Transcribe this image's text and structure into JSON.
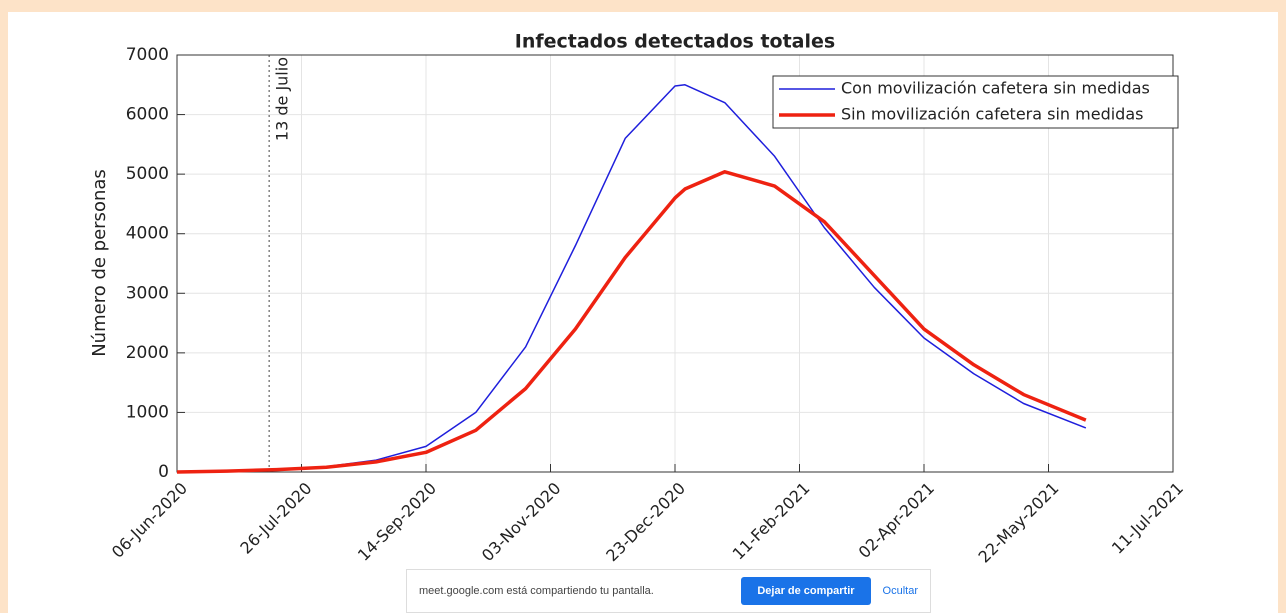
{
  "chart_data": {
    "type": "line",
    "title": "Infectados detectados totales",
    "ylabel": "Número de personas",
    "x": [
      "2020-06-06",
      "2020-06-26",
      "2020-07-16",
      "2020-08-05",
      "2020-08-25",
      "2020-09-14",
      "2020-10-04",
      "2020-10-24",
      "2020-11-13",
      "2020-12-03",
      "2020-12-23",
      "2020-12-27",
      "2021-01-12",
      "2021-02-01",
      "2021-02-21",
      "2021-03-13",
      "2021-04-02",
      "2021-04-22",
      "2021-05-12",
      "2021-06-06"
    ],
    "series": [
      {
        "name": "Con movilización cafetera sin medidas",
        "color": "#1f1fdc",
        "width": 1.5,
        "values": [
          0,
          15,
          40,
          90,
          200,
          430,
          1000,
          2100,
          3800,
          5600,
          6480,
          6500,
          6200,
          5300,
          4100,
          3100,
          2250,
          1650,
          1150,
          740
        ]
      },
      {
        "name": "Sin movilización cafetera sin medidas",
        "color": "#ee2211",
        "width": 3.5,
        "values": [
          0,
          15,
          40,
          80,
          170,
          330,
          700,
          1400,
          2400,
          3600,
          4600,
          4750,
          5040,
          4800,
          4200,
          3300,
          2400,
          1800,
          1300,
          870
        ]
      }
    ],
    "xlim": [
      "2020-06-06",
      "2021-07-11"
    ],
    "xticks": [
      {
        "value": "2020-06-06",
        "label": "06-Jun-2020"
      },
      {
        "value": "2020-07-26",
        "label": "26-Jul-2020"
      },
      {
        "value": "2020-09-14",
        "label": "14-Sep-2020"
      },
      {
        "value": "2020-11-03",
        "label": "03-Nov-2020"
      },
      {
        "value": "2020-12-23",
        "label": "23-Dec-2020"
      },
      {
        "value": "2021-02-11",
        "label": "11-Feb-2021"
      },
      {
        "value": "2021-04-02",
        "label": "02-Apr-2021"
      },
      {
        "value": "2021-05-22",
        "label": "22-May-2021"
      },
      {
        "value": "2021-07-11",
        "label": "11-Jul-2021"
      }
    ],
    "ylim": [
      0,
      7000
    ],
    "yticks": [
      0,
      1000,
      2000,
      3000,
      4000,
      5000,
      6000,
      7000
    ],
    "grid": true,
    "legend": "northeast",
    "annotation": {
      "text": "13 de Julio",
      "x": "2020-07-13"
    }
  },
  "share_bar": {
    "message": "meet.google.com está compartiendo tu pantalla.",
    "stop": "Dejar de compartir",
    "hide": "Ocultar"
  }
}
